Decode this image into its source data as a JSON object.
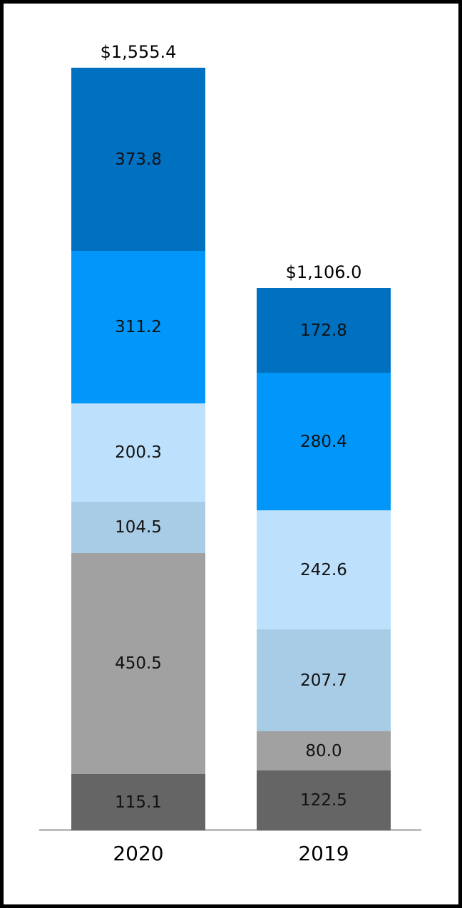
{
  "chart_data": {
    "type": "bar",
    "stacked": true,
    "orientation": "vertical",
    "categories": [
      "2020",
      "2019"
    ],
    "totals": [
      "$1,555.4",
      "$1,106.0"
    ],
    "stack_order": "bottom-to-top",
    "series": [
      {
        "name": "dark-gray-segment",
        "color": "#656565",
        "values": [
          115.1,
          122.5
        ]
      },
      {
        "name": "gray-segment",
        "color": "#A1A1A1",
        "values": [
          450.5,
          80.0
        ]
      },
      {
        "name": "muted-blue-segment",
        "color": "#A9CCE6",
        "values": [
          104.5,
          207.7
        ]
      },
      {
        "name": "light-blue-segment",
        "color": "#BDE1FC",
        "values": [
          200.3,
          242.6
        ]
      },
      {
        "name": "bright-blue-segment",
        "color": "#0096FA",
        "values": [
          311.2,
          280.4
        ]
      },
      {
        "name": "dark-blue-segment",
        "color": "#0070C0",
        "values": [
          373.8,
          172.8
        ]
      }
    ],
    "value_label_color": "#111111",
    "axis_line_color": "#BDBDBD",
    "frame_color": "#000000",
    "legend": "none",
    "grid": false
  }
}
